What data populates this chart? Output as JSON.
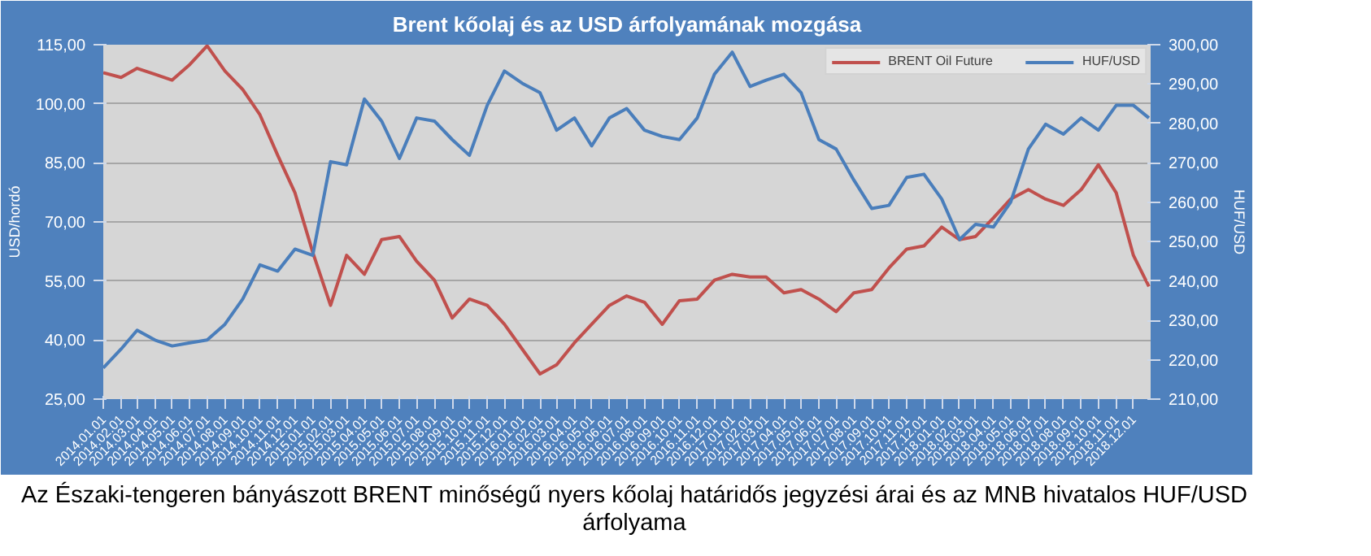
{
  "chart_data": {
    "type": "line",
    "title": "Brent kőolaj és az USD árfolyamának mozgása",
    "ylabel": "USD/hordó",
    "y2label": "HUF/USD",
    "annotations": [
      "Az Északi-tengeren bányászott BRENT minőségű nyers kőolaj határidős jegyzési árai és az MNB hivatalos HUF/USD árfolyama"
    ],
    "x": [
      "2014-01",
      "2014-02",
      "2014-03",
      "2014-04",
      "2014-05",
      "2014-06",
      "2014-07",
      "2014-08",
      "2014-09",
      "2014-10",
      "2014-11",
      "2014-12",
      "2015-01",
      "2015-02",
      "2015-03",
      "2015-04",
      "2015-05",
      "2015-06",
      "2015-07",
      "2015-08",
      "2015-09",
      "2015-10",
      "2015-11",
      "2015-12",
      "2016-01",
      "2016-02",
      "2016-03",
      "2016-04",
      "2016-05",
      "2016-06",
      "2016-07",
      "2016-08",
      "2016-09",
      "2016-10",
      "2016-11",
      "2016-12",
      "2017-01",
      "2017-02",
      "2017-03",
      "2017-04",
      "2017-05",
      "2017-06",
      "2017-07",
      "2017-08",
      "2017-09",
      "2017-10",
      "2017-11",
      "2017-12",
      "2018-01",
      "2018-02",
      "2018-03",
      "2018-04",
      "2018-05",
      "2018-06",
      "2018-07",
      "2018-08",
      "2018-09",
      "2018-10",
      "2018-11",
      "2018-12",
      "2018-12-28"
    ],
    "series": [
      {
        "name": "BRENT Oil Future",
        "color": "#c0504d",
        "values": [
          107.9,
          106.7,
          109,
          107.5,
          106,
          110,
          114.7,
          108.3,
          103.6,
          97.2,
          86.9,
          77.4,
          62.3,
          48.8,
          61.5,
          56.7,
          65.5,
          66.3,
          60,
          55.2,
          45.6,
          50.4,
          48.8,
          44,
          37.7,
          31.4,
          33.7,
          39.3,
          44,
          48.8,
          51.2,
          49.6,
          44,
          50,
          50.4,
          55.2,
          56.7,
          56,
          56,
          52,
          52.8,
          50.4,
          47.2,
          52,
          52.8,
          58.3,
          63.1,
          63.9,
          68.7,
          65.5,
          66.3,
          71,
          75.8,
          78.2,
          75.8,
          74.2,
          78.2,
          84.5,
          77.4,
          61.5,
          53.6
        ]
      },
      {
        "name": "HUF/USD",
        "color": "#4a7ebb",
        "axis": "y2",
        "values": [
          217.9,
          222.7,
          227.5,
          225,
          223.5,
          224.3,
          225,
          229,
          235.4,
          244.1,
          242.5,
          248.1,
          246.5,
          270.3,
          269.5,
          286.2,
          280.6,
          271.1,
          281.4,
          280.6,
          275.9,
          271.9,
          284.6,
          293.3,
          290.2,
          287.8,
          278.3,
          281.4,
          274.3,
          281.4,
          283.8,
          278.3,
          276.7,
          275.9,
          281.4,
          292.5,
          298.1,
          289.4,
          291,
          292.5,
          287.8,
          275.9,
          273.5,
          265.6,
          258.4,
          259.2,
          266.3,
          267.1,
          260.8,
          250.5,
          254.4,
          253.7,
          260,
          273.5,
          279.8,
          277.3,
          281.4,
          278.3,
          284.6,
          284.6,
          281.4
        ]
      }
    ],
    "xlim": [
      "2014-01-01",
      "2018-12-31"
    ],
    "xticks": [
      {
        "value": "2014-01-01",
        "label": "2014.01.01"
      },
      {
        "value": "2014-02-01",
        "label": "2014.02.01"
      },
      {
        "value": "2014-03-01",
        "label": "2014.03.01"
      },
      {
        "value": "2014-04-01",
        "label": "2014.04.01"
      },
      {
        "value": "2014-05-01",
        "label": "2014.05.01"
      },
      {
        "value": "2014-06-01",
        "label": "2014.06.01"
      },
      {
        "value": "2014-07-01",
        "label": "2014.07.01"
      },
      {
        "value": "2014-08-01",
        "label": "2014.08.01"
      },
      {
        "value": "2014-09-01",
        "label": "2014.09.01"
      },
      {
        "value": "2014-10-01",
        "label": "2014.10.01"
      },
      {
        "value": "2014-11-01",
        "label": "2014.11.01"
      },
      {
        "value": "2014-12-01",
        "label": "2014.12.01"
      },
      {
        "value": "2015-01-01",
        "label": "2015.01.01"
      },
      {
        "value": "2015-02-01",
        "label": "2015.02.01"
      },
      {
        "value": "2015-03-01",
        "label": "2015.03.01"
      },
      {
        "value": "2015-04-01",
        "label": "2015.04.01"
      },
      {
        "value": "2015-05-01",
        "label": "2015.05.01"
      },
      {
        "value": "2015-06-01",
        "label": "2015.06.01"
      },
      {
        "value": "2015-07-01",
        "label": "2015.07.01"
      },
      {
        "value": "2015-08-01",
        "label": "2015.08.01"
      },
      {
        "value": "2015-09-01",
        "label": "2015.09.01"
      },
      {
        "value": "2015-10-01",
        "label": "2015.10.01"
      },
      {
        "value": "2015-11-01",
        "label": "2015.11.01"
      },
      {
        "value": "2015-12-01",
        "label": "2015.12.01"
      },
      {
        "value": "2016-01-01",
        "label": "2016.01.01"
      },
      {
        "value": "2016-02-01",
        "label": "2016.02.01"
      },
      {
        "value": "2016-03-01",
        "label": "2016.03.01"
      },
      {
        "value": "2016-04-01",
        "label": "2016.04.01"
      },
      {
        "value": "2016-05-01",
        "label": "2016.05.01"
      },
      {
        "value": "2016-06-01",
        "label": "2016.06.01"
      },
      {
        "value": "2016-07-01",
        "label": "2016.07.01"
      },
      {
        "value": "2016-08-01",
        "label": "2016.08.01"
      },
      {
        "value": "2016-09-01",
        "label": "2016.09.01"
      },
      {
        "value": "2016-10-01",
        "label": "2016.10.01"
      },
      {
        "value": "2016-11-01",
        "label": "2016.11.01"
      },
      {
        "value": "2016-12-01",
        "label": "2016.12.01"
      },
      {
        "value": "2017-01-01",
        "label": "2017.01.01"
      },
      {
        "value": "2017-02-01",
        "label": "2017.02.01"
      },
      {
        "value": "2017-03-01",
        "label": "2017.03.01"
      },
      {
        "value": "2017-04-01",
        "label": "2017.04.01"
      },
      {
        "value": "2017-05-01",
        "label": "2017.05.01"
      },
      {
        "value": "2017-06-01",
        "label": "2017.06.01"
      },
      {
        "value": "2017-07-01",
        "label": "2017.07.01"
      },
      {
        "value": "2017-08-01",
        "label": "2017.08.01"
      },
      {
        "value": "2017-09-01",
        "label": "2017.09.01"
      },
      {
        "value": "2017-10-01",
        "label": "2017.10.01"
      },
      {
        "value": "2017-11-01",
        "label": "2017.11.01"
      },
      {
        "value": "2017-12-01",
        "label": "2017.12.01"
      },
      {
        "value": "2018-01-01",
        "label": "2018.01.01"
      },
      {
        "value": "2018-02-01",
        "label": "2018.02.01"
      },
      {
        "value": "2018-03-01",
        "label": "2018.03.01"
      },
      {
        "value": "2018-04-01",
        "label": "2018.04.01"
      },
      {
        "value": "2018-05-01",
        "label": "2018.05.01"
      },
      {
        "value": "2018-06-01",
        "label": "2018.06.01"
      },
      {
        "value": "2018-07-01",
        "label": "2018.07.01"
      },
      {
        "value": "2018-08-01",
        "label": "2018.08.01"
      },
      {
        "value": "2018-09-01",
        "label": "2018.09.01"
      },
      {
        "value": "2018-10-01",
        "label": "2018.10.01"
      },
      {
        "value": "2018-11-01",
        "label": "2018.11.01"
      },
      {
        "value": "2018-12-01",
        "label": "2018.12.01"
      }
    ],
    "ylim": [
      25,
      115
    ],
    "yticks": [
      {
        "value": 25,
        "label": "25,00"
      },
      {
        "value": 40,
        "label": "40,00"
      },
      {
        "value": 55,
        "label": "55,00"
      },
      {
        "value": 70,
        "label": "70,00"
      },
      {
        "value": 85,
        "label": "85,00"
      },
      {
        "value": 100,
        "label": "100,00"
      },
      {
        "value": 115,
        "label": "115,00"
      }
    ],
    "y2lim": [
      210,
      300
    ],
    "y2ticks": [
      {
        "value": 210,
        "label": "210,00"
      },
      {
        "value": 220,
        "label": "220,00"
      },
      {
        "value": 230,
        "label": "230,00"
      },
      {
        "value": 240,
        "label": "240,00"
      },
      {
        "value": 250,
        "label": "250,00"
      },
      {
        "value": 260,
        "label": "260,00"
      },
      {
        "value": 270,
        "label": "270,00"
      },
      {
        "value": 280,
        "label": "280,00"
      },
      {
        "value": 290,
        "label": "290,00"
      },
      {
        "value": 300,
        "label": "300,00"
      }
    ],
    "grid": "y",
    "legend": "top right",
    "marker": "none",
    "line_style": "solid"
  }
}
